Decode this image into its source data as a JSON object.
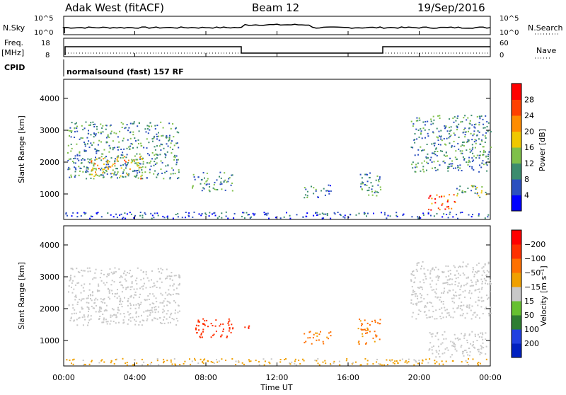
{
  "header": {
    "station": "Adak West (fitACF)",
    "beam": "Beam 12",
    "date": "19/Sep/2016"
  },
  "top_panels": {
    "nsky_label": "N.Sky",
    "nsearch_label": "N.Search",
    "nsky_ticks": [
      "10^5",
      "10^0"
    ],
    "nsearch_ticks": [
      "10^5",
      "10^0"
    ],
    "freq_label_1": "Freq.",
    "freq_label_2": "[MHz]",
    "freq_ticks": [
      "18",
      "8"
    ],
    "nave_label": "Nave",
    "nave_ticks": [
      "60",
      "0"
    ],
    "cpid_label": "CPID",
    "cpid_text": "normalsound (fast) 157 RF"
  },
  "chart_data": [
    {
      "type": "heatmap",
      "name": "power-panel",
      "ylabel": "Slant Range [km]",
      "yticks": [
        1000,
        2000,
        3000,
        4000
      ],
      "ylim": [
        200,
        4600
      ],
      "xlim": [
        0,
        24
      ],
      "colorbar": {
        "label": "Power [dB]",
        "ticks": [
          "4",
          "8",
          "12",
          "16",
          "20",
          "24",
          "28"
        ],
        "colors": [
          "#0000ff",
          "#2b4fbf",
          "#3c8c6e",
          "#7fc04a",
          "#f0c800",
          "#ff8c00",
          "#ff4000",
          "#ff0000"
        ]
      },
      "regions": [
        {
          "t0": 0.2,
          "t1": 6.5,
          "r0": 1500,
          "r1": 3300,
          "value": 10
        },
        {
          "t0": 1.5,
          "t1": 4.5,
          "r0": 1500,
          "r1": 2200,
          "value": 18
        },
        {
          "t0": 7.2,
          "t1": 9.5,
          "r0": 1100,
          "r1": 1700,
          "value": 10
        },
        {
          "t0": 13.5,
          "t1": 15.0,
          "r0": 900,
          "r1": 1300,
          "value": 8
        },
        {
          "t0": 16.5,
          "t1": 17.8,
          "r0": 900,
          "r1": 1700,
          "value": 10
        },
        {
          "t0": 19.5,
          "t1": 24.0,
          "r0": 1700,
          "r1": 3500,
          "value": 10
        },
        {
          "t0": 20.5,
          "t1": 22.0,
          "r0": 500,
          "r1": 1000,
          "value": 26
        },
        {
          "t0": 22.0,
          "t1": 23.8,
          "r0": 900,
          "r1": 1300,
          "value": 12
        },
        {
          "t0": 0.0,
          "t1": 24.0,
          "r0": 250,
          "r1": 450,
          "value": 6
        }
      ]
    },
    {
      "type": "heatmap",
      "name": "velocity-panel",
      "ylabel": "Slant Range [km]",
      "yticks": [
        1000,
        2000,
        3000,
        4000
      ],
      "ylim": [
        200,
        4600
      ],
      "xlim": [
        0,
        24
      ],
      "xlabel": "Time UT",
      "xticks": [
        "00:00",
        "04:00",
        "08:00",
        "12:00",
        "16:00",
        "20:00",
        "00:00"
      ],
      "colorbar": {
        "label": "Velocity [m s⁻¹]",
        "ticks": [
          "200",
          "100",
          "50",
          "15",
          "−15",
          "−50",
          "−100",
          "−200"
        ],
        "colors": [
          "#0020c0",
          "#2040e0",
          "#2e7d32",
          "#66c030",
          "#c8c8c8",
          "#f0a000",
          "#ff7000",
          "#ff3000",
          "#ff0000"
        ]
      },
      "regions": [
        {
          "t0": 0.2,
          "t1": 6.5,
          "r0": 1500,
          "r1": 3300,
          "value": 0
        },
        {
          "t0": 7.2,
          "t1": 9.5,
          "r0": 1100,
          "r1": 1700,
          "value": -150
        },
        {
          "t0": 10.0,
          "t1": 10.5,
          "r0": 1400,
          "r1": 1600,
          "value": -200
        },
        {
          "t0": 13.5,
          "t1": 15.0,
          "r0": 900,
          "r1": 1300,
          "value": -60
        },
        {
          "t0": 16.5,
          "t1": 17.8,
          "r0": 900,
          "r1": 1700,
          "value": -60
        },
        {
          "t0": 19.5,
          "t1": 24.0,
          "r0": 1700,
          "r1": 3500,
          "value": 0
        },
        {
          "t0": 20.5,
          "t1": 23.8,
          "r0": 500,
          "r1": 1300,
          "value": 0
        },
        {
          "t0": 0.0,
          "t1": 24.0,
          "r0": 250,
          "r1": 450,
          "value": -20
        }
      ]
    }
  ]
}
